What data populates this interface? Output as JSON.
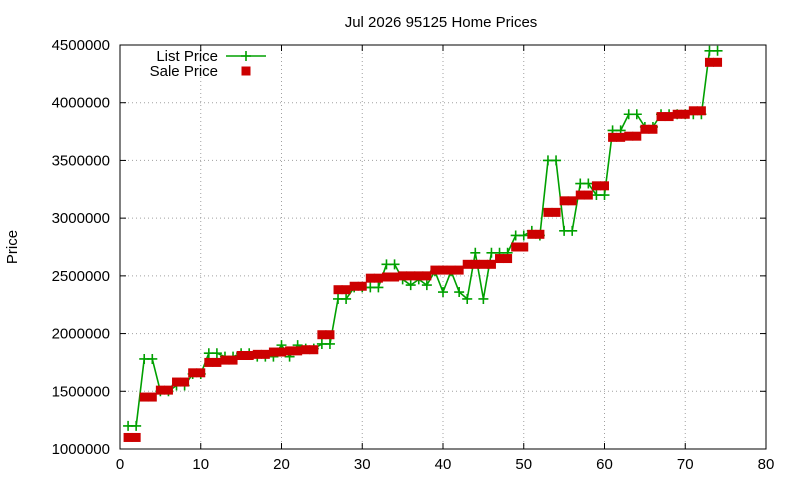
{
  "chart_data": {
    "type": "line",
    "title": "Jul 2026 95125 Home Prices",
    "xlabel": "",
    "ylabel": "Price",
    "xlim": [
      0,
      80
    ],
    "ylim": [
      1000000,
      4500000
    ],
    "x_ticks": [
      "0",
      "10",
      "20",
      "30",
      "40",
      "50",
      "60",
      "70",
      "80"
    ],
    "y_ticks": [
      "1000000",
      "1500000",
      "2000000",
      "2500000",
      "3000000",
      "3500000",
      "4000000",
      "4500000"
    ],
    "grid": true,
    "legend_position": "top-left",
    "series": [
      {
        "name": "List Price",
        "style": "line-with-plus-markers",
        "color": "#00a000",
        "points": [
          [
            1,
            1200000
          ],
          [
            2,
            1200000
          ],
          [
            3,
            1780000
          ],
          [
            4,
            1780000
          ],
          [
            5,
            1500000
          ],
          [
            6,
            1500000
          ],
          [
            7,
            1550000
          ],
          [
            8,
            1550000
          ],
          [
            9,
            1650000
          ],
          [
            10,
            1650000
          ],
          [
            11,
            1830000
          ],
          [
            12,
            1830000
          ],
          [
            13,
            1800000
          ],
          [
            14,
            1800000
          ],
          [
            15,
            1830000
          ],
          [
            16,
            1830000
          ],
          [
            17,
            1800000
          ],
          [
            18,
            1800000
          ],
          [
            19,
            1800000
          ],
          [
            20,
            1900000
          ],
          [
            21,
            1800000
          ],
          [
            22,
            1900000
          ],
          [
            23,
            1870000
          ],
          [
            24,
            1870000
          ],
          [
            25,
            1910000
          ],
          [
            26,
            1910000
          ],
          [
            27,
            2300000
          ],
          [
            28,
            2300000
          ],
          [
            29,
            2400000
          ],
          [
            30,
            2400000
          ],
          [
            31,
            2400000
          ],
          [
            32,
            2400000
          ],
          [
            33,
            2600000
          ],
          [
            34,
            2600000
          ],
          [
            35,
            2470000
          ],
          [
            36,
            2420000
          ],
          [
            37,
            2470000
          ],
          [
            38,
            2420000
          ],
          [
            39,
            2540000
          ],
          [
            40,
            2360000
          ],
          [
            41,
            2540000
          ],
          [
            42,
            2360000
          ],
          [
            43,
            2300000
          ],
          [
            44,
            2700000
          ],
          [
            45,
            2300000
          ],
          [
            46,
            2700000
          ],
          [
            47,
            2700000
          ],
          [
            48,
            2700000
          ],
          [
            49,
            2850000
          ],
          [
            50,
            2850000
          ],
          [
            51,
            2890000
          ],
          [
            52,
            2850000
          ],
          [
            53,
            3500000
          ],
          [
            54,
            3500000
          ],
          [
            55,
            2890000
          ],
          [
            56,
            2890000
          ],
          [
            57,
            3300000
          ],
          [
            58,
            3300000
          ],
          [
            59,
            3200000
          ],
          [
            60,
            3200000
          ],
          [
            61,
            3760000
          ],
          [
            62,
            3760000
          ],
          [
            63,
            3900000
          ],
          [
            64,
            3900000
          ],
          [
            65,
            3790000
          ],
          [
            66,
            3790000
          ],
          [
            67,
            3900000
          ],
          [
            68,
            3900000
          ],
          [
            69,
            3900000
          ],
          [
            70,
            3900000
          ],
          [
            71,
            3900000
          ],
          [
            72,
            3900000
          ],
          [
            73,
            4450000
          ],
          [
            74,
            4450000
          ]
        ]
      },
      {
        "name": "Sale Price",
        "style": "square-markers",
        "color": "#cc0000",
        "points": [
          [
            1,
            1100000
          ],
          [
            2,
            1100000
          ],
          [
            3,
            1450000
          ],
          [
            4,
            1450000
          ],
          [
            5,
            1510000
          ],
          [
            6,
            1510000
          ],
          [
            7,
            1580000
          ],
          [
            8,
            1580000
          ],
          [
            9,
            1660000
          ],
          [
            10,
            1660000
          ],
          [
            11,
            1750000
          ],
          [
            12,
            1750000
          ],
          [
            13,
            1770000
          ],
          [
            14,
            1770000
          ],
          [
            15,
            1810000
          ],
          [
            16,
            1810000
          ],
          [
            17,
            1820000
          ],
          [
            18,
            1820000
          ],
          [
            19,
            1840000
          ],
          [
            20,
            1840000
          ],
          [
            21,
            1850000
          ],
          [
            22,
            1850000
          ],
          [
            23,
            1860000
          ],
          [
            24,
            1860000
          ],
          [
            25,
            1990000
          ],
          [
            26,
            1990000
          ],
          [
            27,
            2380000
          ],
          [
            28,
            2380000
          ],
          [
            29,
            2410000
          ],
          [
            30,
            2410000
          ],
          [
            31,
            2480000
          ],
          [
            32,
            2480000
          ],
          [
            33,
            2490000
          ],
          [
            34,
            2490000
          ],
          [
            35,
            2500000
          ],
          [
            36,
            2500000
          ],
          [
            37,
            2500000
          ],
          [
            38,
            2500000
          ],
          [
            39,
            2550000
          ],
          [
            40,
            2550000
          ],
          [
            41,
            2550000
          ],
          [
            42,
            2550000
          ],
          [
            43,
            2600000
          ],
          [
            44,
            2600000
          ],
          [
            45,
            2600000
          ],
          [
            46,
            2600000
          ],
          [
            47,
            2650000
          ],
          [
            48,
            2650000
          ],
          [
            49,
            2750000
          ],
          [
            50,
            2750000
          ],
          [
            51,
            2860000
          ],
          [
            52,
            2860000
          ],
          [
            53,
            3050000
          ],
          [
            54,
            3050000
          ],
          [
            55,
            3150000
          ],
          [
            56,
            3150000
          ],
          [
            57,
            3200000
          ],
          [
            58,
            3200000
          ],
          [
            59,
            3280000
          ],
          [
            60,
            3280000
          ],
          [
            61,
            3700000
          ],
          [
            62,
            3700000
          ],
          [
            63,
            3710000
          ],
          [
            64,
            3710000
          ],
          [
            65,
            3770000
          ],
          [
            66,
            3770000
          ],
          [
            67,
            3880000
          ],
          [
            68,
            3880000
          ],
          [
            69,
            3900000
          ],
          [
            70,
            3900000
          ],
          [
            71,
            3930000
          ],
          [
            72,
            3930000
          ],
          [
            73,
            4350000
          ],
          [
            74,
            4350000
          ]
        ]
      }
    ]
  }
}
